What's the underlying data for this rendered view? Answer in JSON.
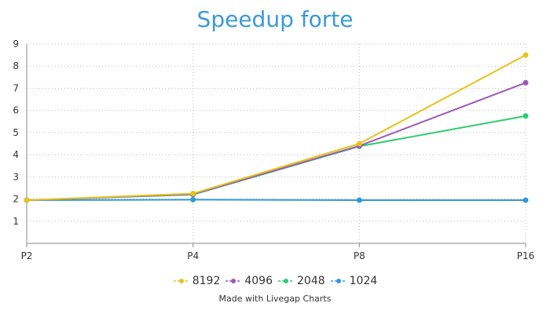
{
  "chart_data": {
    "type": "line",
    "title": "Speedup forte",
    "categories": [
      "P2",
      "P4",
      "P8",
      "P16"
    ],
    "series": [
      {
        "name": "8192",
        "color": "#e8c31c",
        "values": [
          1.95,
          2.25,
          4.5,
          8.5
        ]
      },
      {
        "name": "4096",
        "color": "#9b59b6",
        "values": [
          1.95,
          2.22,
          4.4,
          7.25
        ]
      },
      {
        "name": "2048",
        "color": "#2ecc71",
        "values": [
          1.95,
          2.2,
          4.38,
          5.75
        ]
      },
      {
        "name": "1024",
        "color": "#3498db",
        "values": [
          1.95,
          1.97,
          1.95,
          1.95
        ]
      }
    ],
    "ylim": [
      0,
      9
    ],
    "yticks": [
      1,
      2,
      3,
      4,
      5,
      6,
      7,
      8,
      9
    ],
    "grid": true,
    "legend_position": "bottom"
  },
  "credit": "Made with Livegap Charts",
  "colors": {
    "title": "#3a9ad9",
    "grid": "#bbbbbb",
    "axis": "#888888"
  }
}
